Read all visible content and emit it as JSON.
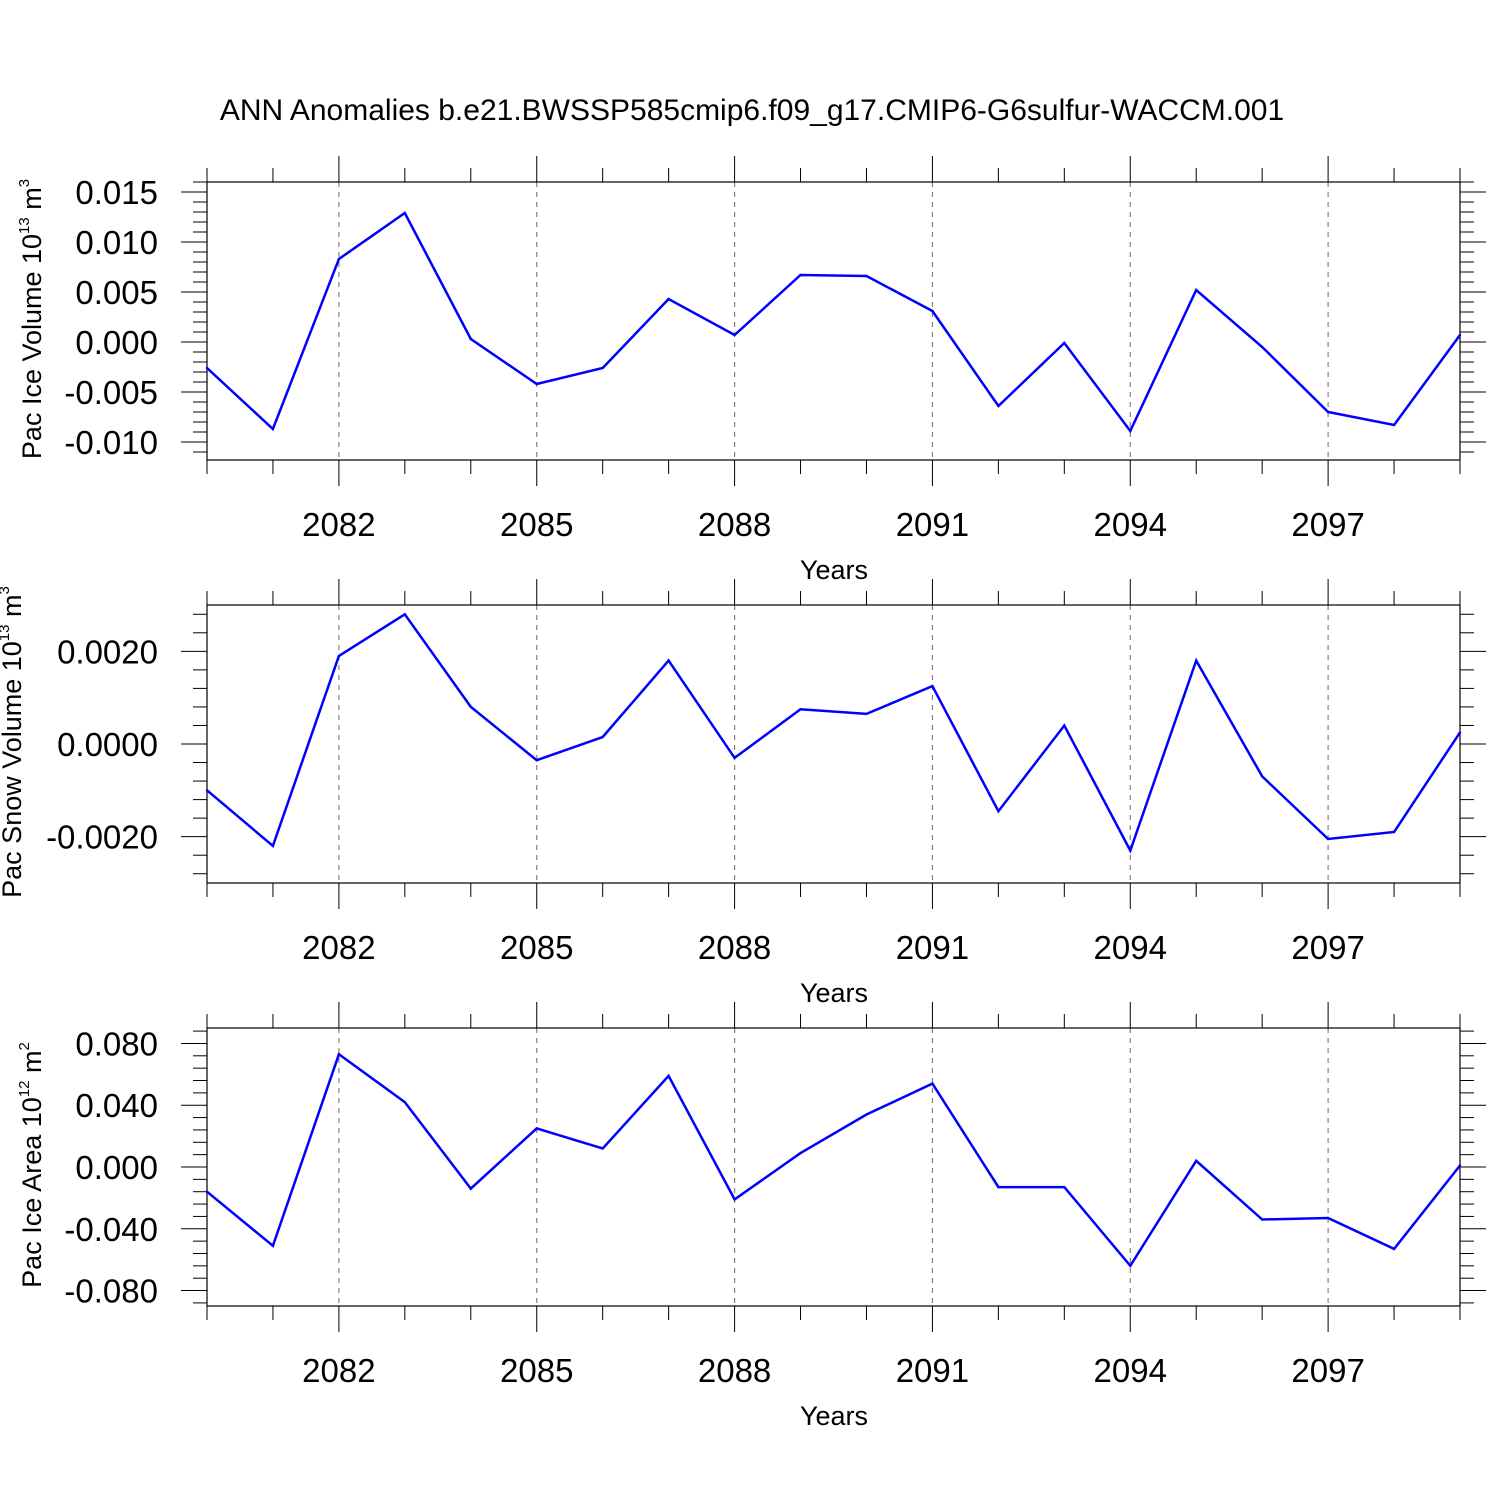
{
  "title": "ANN Anomalies b.e21.BWSSP585cmip6.f09_g17.CMIP6-G6sulfur-WACCM.001",
  "colors": {
    "line": "#0000ff",
    "frame": "#000000",
    "gridline": "#808080"
  },
  "chart_data": [
    {
      "type": "line",
      "ylabel": {
        "text": "Pac Ice Volume 10",
        "sup": "13",
        "unit": "m",
        "unit_sup": "3"
      },
      "xlabel": "Years",
      "x": [
        2080,
        2081,
        2082,
        2083,
        2084,
        2085,
        2086,
        2087,
        2088,
        2089,
        2090,
        2091,
        2092,
        2093,
        2094,
        2095,
        2096,
        2097,
        2098,
        2099
      ],
      "values": [
        -0.0026,
        -0.0087,
        0.0083,
        0.0129,
        0.0003,
        -0.0042,
        -0.0026,
        0.0043,
        0.0007,
        0.0067,
        0.0066,
        0.0031,
        -0.0064,
        -0.0001,
        -0.0089,
        0.0052,
        -0.0005,
        -0.007,
        -0.0083,
        0.0007
      ],
      "xlim": [
        2080,
        2099
      ],
      "ylim": [
        -0.0118,
        0.016
      ],
      "xticks": [
        2082,
        2085,
        2088,
        2091,
        2094,
        2097
      ],
      "xtick_labels": [
        "2082",
        "2085",
        "2088",
        "2091",
        "2094",
        "2097"
      ],
      "yticks": [
        0.015,
        0.01,
        0.005,
        0,
        -0.005,
        -0.01
      ],
      "ytick_labels": [
        "0.015",
        "0.010",
        "0.005",
        "0.000",
        "-0.005",
        "-0.010"
      ],
      "grid": "vertical dashed at labeled years"
    },
    {
      "type": "line",
      "ylabel": {
        "text": "Pac Snow Volume 10",
        "sup": "13",
        "unit": "m",
        "unit_sup": "3"
      },
      "xlabel": "Years",
      "x": [
        2080,
        2081,
        2082,
        2083,
        2084,
        2085,
        2086,
        2087,
        2088,
        2089,
        2090,
        2091,
        2092,
        2093,
        2094,
        2095,
        2096,
        2097,
        2098,
        2099
      ],
      "values": [
        -0.001,
        -0.0022,
        0.0019,
        0.0028,
        0.0008,
        -0.00035,
        0.00015,
        0.0018,
        -0.0003,
        0.00075,
        0.00065,
        0.00125,
        -0.00145,
        0.0004,
        -0.0023,
        0.0018,
        -0.0007,
        -0.00205,
        -0.0019,
        0.00025
      ],
      "xlim": [
        2080,
        2099
      ],
      "ylim": [
        -0.003,
        0.003
      ],
      "xticks": [
        2082,
        2085,
        2088,
        2091,
        2094,
        2097
      ],
      "xtick_labels": [
        "2082",
        "2085",
        "2088",
        "2091",
        "2094",
        "2097"
      ],
      "yticks": [
        0.002,
        0,
        -0.002
      ],
      "ytick_labels": [
        "0.0020",
        "0.0000",
        "-0.0020"
      ],
      "grid": "vertical dashed at labeled years"
    },
    {
      "type": "line",
      "ylabel": {
        "text": "Pac Ice Area 10",
        "sup": "12",
        "unit": "m",
        "unit_sup": "2"
      },
      "xlabel": "Years",
      "x": [
        2080,
        2081,
        2082,
        2083,
        2084,
        2085,
        2086,
        2087,
        2088,
        2089,
        2090,
        2091,
        2092,
        2093,
        2094,
        2095,
        2096,
        2097,
        2098,
        2099
      ],
      "values": [
        -0.016,
        -0.051,
        0.073,
        0.042,
        -0.014,
        0.025,
        0.012,
        0.059,
        -0.021,
        0.009,
        0.034,
        0.054,
        -0.013,
        -0.013,
        -0.064,
        0.004,
        -0.034,
        -0.033,
        -0.053,
        0.001
      ],
      "xlim": [
        2080,
        2099
      ],
      "ylim": [
        -0.09,
        0.09
      ],
      "xticks": [
        2082,
        2085,
        2088,
        2091,
        2094,
        2097
      ],
      "xtick_labels": [
        "2082",
        "2085",
        "2088",
        "2091",
        "2094",
        "2097"
      ],
      "yticks": [
        0.08,
        0.04,
        0,
        -0.04,
        -0.08
      ],
      "ytick_labels": [
        "0.080",
        "0.040",
        "0.000",
        "-0.040",
        "-0.080"
      ],
      "grid": "vertical dashed at labeled years"
    }
  ]
}
